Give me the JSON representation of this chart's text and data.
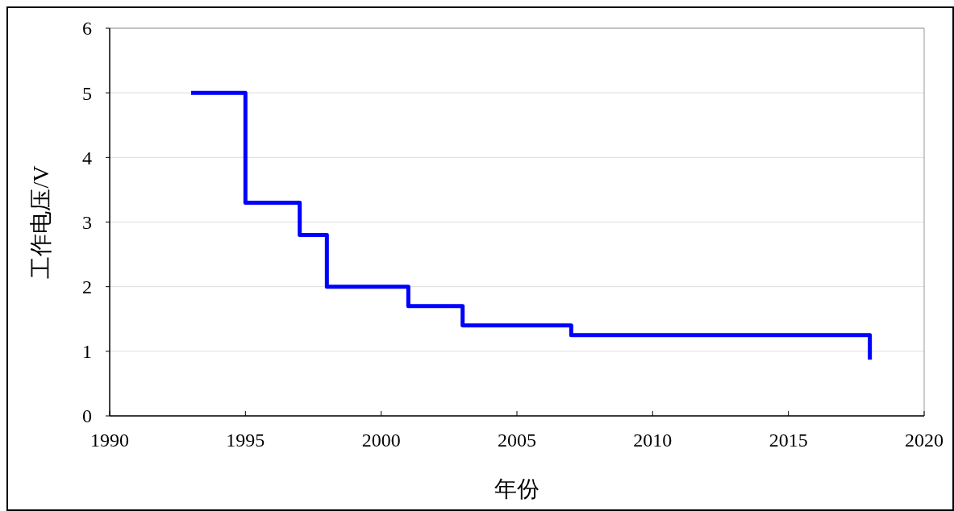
{
  "chart_data": {
    "type": "step",
    "xlabel": "年份",
    "ylabel": "工作电压/V",
    "x": [
      1993,
      1995,
      1997,
      1998,
      2001,
      2003,
      2007,
      2018
    ],
    "series": [
      {
        "color": "#0000ff",
        "values": [
          5,
          3.3,
          2.8,
          2,
          1.7,
          1.4,
          1.25,
          0.87
        ]
      }
    ],
    "xlim": [
      1990,
      2020
    ],
    "xticks": [
      1990,
      1995,
      2000,
      2005,
      2010,
      2015,
      2020
    ],
    "ylim": [
      0,
      6
    ],
    "yticks": [
      0,
      1,
      2,
      3,
      4,
      5,
      6
    ],
    "grid": "y",
    "marker": "none",
    "line_style": "solid"
  }
}
